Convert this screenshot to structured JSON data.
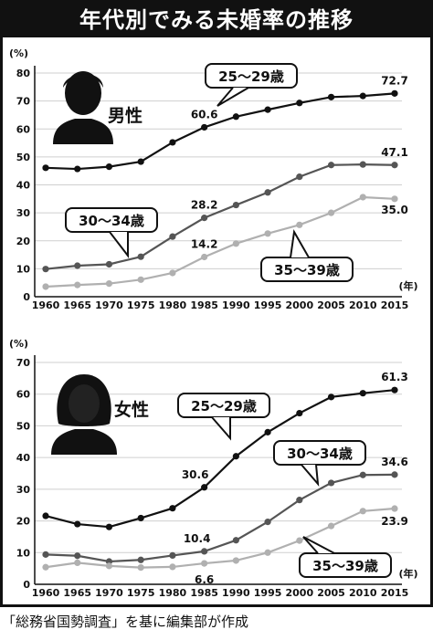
{
  "title": "年代別でみる未婚率の推移",
  "source": "「総務省国勢調査」を基に編集部が作成",
  "chart_data": [
    {
      "type": "line",
      "gender_label": "男性",
      "y_unit": "(%)",
      "x_unit": "(年)",
      "x": [
        1960,
        1965,
        1970,
        1975,
        1980,
        1985,
        1990,
        1995,
        2000,
        2005,
        2010,
        2015
      ],
      "ylim": [
        0,
        80
      ],
      "yticks": [
        0,
        10,
        20,
        30,
        40,
        50,
        60,
        70,
        80
      ],
      "grid": true,
      "series": [
        {
          "name": "25～29歳",
          "color": "#111111",
          "values": [
            46.1,
            45.7,
            46.5,
            48.3,
            55.2,
            60.6,
            64.4,
            66.9,
            69.3,
            71.4,
            71.8,
            72.7
          ]
        },
        {
          "name": "30～34歳",
          "color": "#555555",
          "values": [
            9.9,
            11.1,
            11.6,
            14.3,
            21.5,
            28.2,
            32.8,
            37.3,
            42.9,
            47.1,
            47.3,
            47.1
          ]
        },
        {
          "name": "35～39歳",
          "color": "#b0b0b0",
          "values": [
            3.6,
            4.2,
            4.7,
            6.1,
            8.5,
            14.2,
            19.0,
            22.6,
            25.7,
            30.0,
            35.6,
            35.0
          ]
        }
      ],
      "data_labels": [
        {
          "series": 0,
          "index": 5,
          "text": "60.6"
        },
        {
          "series": 0,
          "index": 11,
          "text": "72.7"
        },
        {
          "series": 1,
          "index": 5,
          "text": "28.2"
        },
        {
          "series": 1,
          "index": 11,
          "text": "47.1"
        },
        {
          "series": 2,
          "index": 5,
          "text": "14.2"
        },
        {
          "series": 2,
          "index": 11,
          "text": "35.0"
        }
      ]
    },
    {
      "type": "line",
      "gender_label": "女性",
      "y_unit": "(%)",
      "x_unit": "(年)",
      "x": [
        1960,
        1965,
        1970,
        1975,
        1980,
        1985,
        1990,
        1995,
        2000,
        2005,
        2010,
        2015
      ],
      "ylim": [
        0,
        70
      ],
      "yticks": [
        0,
        10,
        20,
        30,
        40,
        50,
        60,
        70
      ],
      "grid": true,
      "series": [
        {
          "name": "25～29歳",
          "color": "#111111",
          "values": [
            21.6,
            19.0,
            18.1,
            20.9,
            24.0,
            30.6,
            40.4,
            48.0,
            54.0,
            59.1,
            60.3,
            61.3
          ]
        },
        {
          "name": "30～34歳",
          "color": "#555555",
          "values": [
            9.4,
            9.0,
            7.2,
            7.7,
            9.1,
            10.4,
            13.9,
            19.7,
            26.6,
            32.0,
            34.5,
            34.6
          ]
        },
        {
          "name": "35～39歳",
          "color": "#b0b0b0",
          "values": [
            5.4,
            6.8,
            5.8,
            5.3,
            5.5,
            6.6,
            7.5,
            10.0,
            13.8,
            18.4,
            23.1,
            23.9
          ]
        }
      ],
      "data_labels": [
        {
          "series": 0,
          "index": 5,
          "text": "30.6"
        },
        {
          "series": 0,
          "index": 11,
          "text": "61.3"
        },
        {
          "series": 1,
          "index": 5,
          "text": "10.4"
        },
        {
          "series": 1,
          "index": 11,
          "text": "34.6"
        },
        {
          "series": 2,
          "index": 5,
          "text": "6.6"
        },
        {
          "series": 2,
          "index": 11,
          "text": "23.9"
        }
      ]
    }
  ]
}
